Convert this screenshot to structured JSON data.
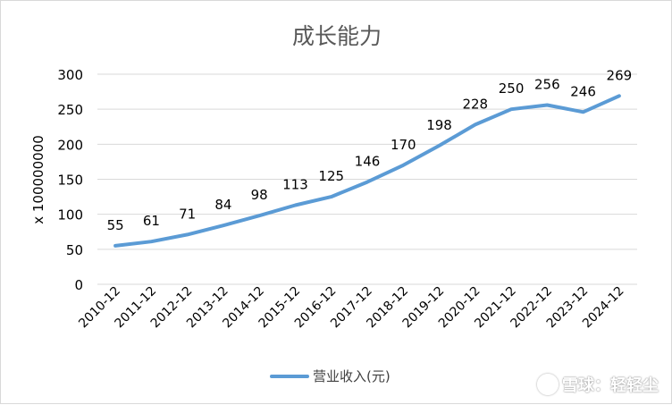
{
  "chart_data": {
    "type": "line",
    "title": "成长能力",
    "ylabel": "x 100000000",
    "xlabel": "",
    "categories": [
      "2010-12",
      "2011-12",
      "2012-12",
      "2013-12",
      "2014-12",
      "2015-12",
      "2016-12",
      "2017-12",
      "2018-12",
      "2019-12",
      "2020-12",
      "2021-12",
      "2022-12",
      "2023-12",
      "2024-12"
    ],
    "series": [
      {
        "name": "营业收入(元)",
        "values": [
          55,
          61,
          71,
          84,
          98,
          113,
          125,
          146,
          170,
          198,
          228,
          250,
          256,
          246,
          269
        ],
        "color": "#5b9bd5"
      }
    ],
    "ylim": [
      0,
      300
    ],
    "yticks": [
      0,
      50,
      100,
      150,
      200,
      250,
      300
    ],
    "grid": true,
    "legend": "bottom",
    "data_labels": true
  },
  "watermark": {
    "text": "雪球：轻轻尘",
    "icon": "snowball-logo-icon"
  }
}
